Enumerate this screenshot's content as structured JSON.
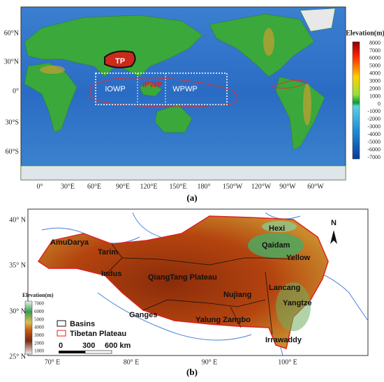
{
  "panel_a": {
    "lat_labels": [
      "60°N",
      "30°N",
      "0°",
      "30°S",
      "60°S"
    ],
    "lon_labels": [
      "0°",
      "30°E",
      "60°E",
      "90°E",
      "120°E",
      "150°E",
      "180°",
      "150°W",
      "120°W",
      "90°W",
      "60°W"
    ],
    "colorbar_title": "Elevation(m)",
    "colorbar_labels": [
      "8000",
      "7000",
      "6000",
      "5000",
      "4000",
      "3000",
      "2000",
      "1000",
      "0",
      "-1000",
      "-2000",
      "-3000",
      "-4000",
      "-5000",
      "-6000",
      "-7000"
    ],
    "annotations": {
      "tp": "TP",
      "iowp": "IOWP",
      "ipwp": "IPWP",
      "wpwp": "WPWP"
    },
    "caption": "(a)"
  },
  "panel_b": {
    "lat_labels": [
      "40° N",
      "35° N",
      "30° N",
      "25° N"
    ],
    "lon_labels": [
      "70° E",
      "80° E",
      "90° E",
      "100° E"
    ],
    "colorbar_title": "Elevation(m)",
    "colorbar_labels": [
      "7000",
      "6000",
      "5000",
      "4000",
      "3000",
      "2000",
      "1000"
    ],
    "regions": [
      "AmuDarya",
      "Tarim",
      "Indus",
      "QiangTang Plateau",
      "Hexi",
      "Qaidam",
      "Yellow",
      "Lancang",
      "Nujiang",
      "Yangtze",
      "Ganges",
      "Yalung Zangbo",
      "Irrawaddy"
    ],
    "legend": {
      "basins": "Basins",
      "plateau": "Tibetan Plateau"
    },
    "scale_labels": [
      "0",
      "300",
      "600 km"
    ],
    "north": "N",
    "caption": "(b)"
  }
}
